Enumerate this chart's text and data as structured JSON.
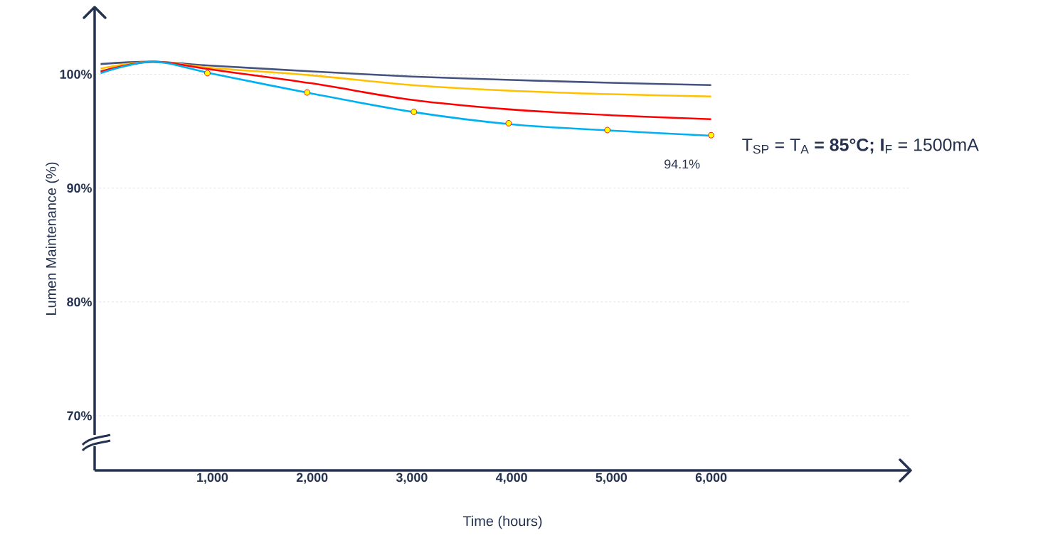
{
  "chart_data": {
    "type": "line",
    "xlabel": "Time (hours)",
    "ylabel": "Lumen Maintenance (%)",
    "xlim": [
      -180,
      8000
    ],
    "ylim": [
      65.2,
      105.9
    ],
    "xticks": [
      {
        "value": 1000,
        "label": "1,000"
      },
      {
        "value": 2000,
        "label": "2,000"
      },
      {
        "value": 3000,
        "label": "3,000"
      },
      {
        "value": 4000,
        "label": "4,000"
      },
      {
        "value": 5000,
        "label": "5,000"
      },
      {
        "value": 6000,
        "label": "6,000"
      }
    ],
    "yticks": [
      {
        "value": 70,
        "label": "70%"
      },
      {
        "value": 80,
        "label": "80%"
      },
      {
        "value": 90,
        "label": "90%"
      },
      {
        "value": 100,
        "label": "100%"
      }
    ],
    "grid": "y",
    "line_style": "solid",
    "series": [
      {
        "color": "#44547f",
        "x": [
          -120,
          400,
          1000,
          2000,
          3000,
          4000,
          5000,
          6000
        ],
        "values": [
          100.9,
          101.1,
          100.75,
          100.25,
          99.8,
          99.5,
          99.25,
          99.05
        ]
      },
      {
        "color": "#ffc000",
        "x": [
          -120,
          400,
          1000,
          2000,
          3000,
          4000,
          5000,
          6000
        ],
        "values": [
          100.5,
          101.1,
          100.55,
          99.9,
          99.05,
          98.55,
          98.25,
          98.05
        ]
      },
      {
        "color": "#ff0000",
        "x": [
          -120,
          400,
          1000,
          2000,
          3000,
          4000,
          5000,
          6000
        ],
        "values": [
          100.25,
          101.1,
          100.4,
          99.2,
          97.75,
          96.9,
          96.4,
          96.05
        ]
      },
      {
        "color": "#00b0f0",
        "x": [
          -120,
          400,
          1000,
          2000,
          3000,
          4000,
          5000,
          6000
        ],
        "values": [
          100.1,
          101.1,
          100.05,
          98.3,
          96.7,
          95.6,
          95.05,
          94.6
        ]
      },
      {
        "type": "scatter",
        "color": "#ffff00",
        "x": [
          950,
          1950,
          3020,
          3970,
          4960,
          6000
        ],
        "values": [
          100.1,
          98.4,
          96.7,
          95.7,
          95.1,
          94.65
        ]
      }
    ],
    "annotations": [
      "T$_{SP}$ = T$_{A}$ **= 85°C; I**$_{F}$ = 1500mA",
      {
        "text": "94.1%",
        "x": 6000,
        "y": 94.1
      }
    ]
  }
}
